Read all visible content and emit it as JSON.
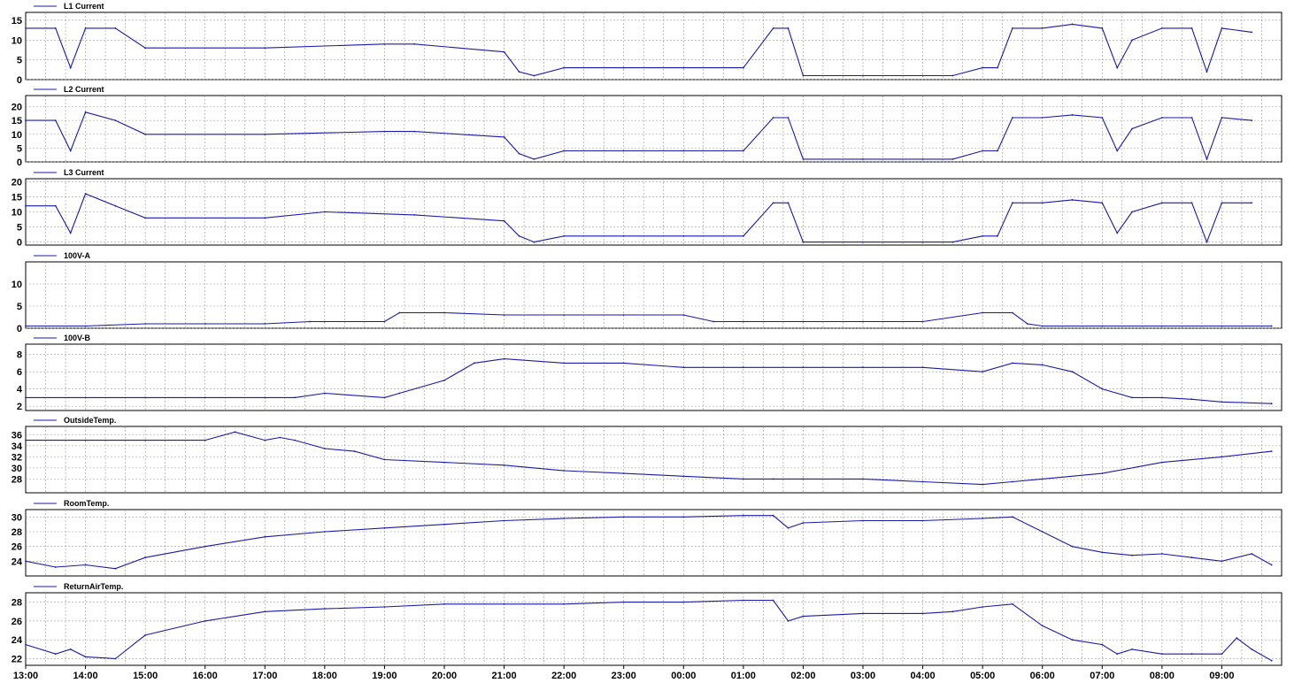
{
  "line_color": "#1a1aa8",
  "grid_color": "#999999",
  "x_tick_labels": [
    "13:00",
    "14:00",
    "15:00",
    "16:00",
    "17:00",
    "18:00",
    "19:00",
    "20:00",
    "21:00",
    "22:00",
    "23:00",
    "00:00",
    "01:00",
    "02:00",
    "03:00",
    "04:00",
    "05:00",
    "06:00",
    "07:00",
    "08:00",
    "09:00"
  ],
  "chart_data": [
    {
      "type": "line",
      "title": "L1 Current",
      "xlabel": "",
      "ylabel": "",
      "ylim": [
        0,
        17
      ],
      "yticks": [
        0,
        5,
        10,
        15
      ],
      "x": [
        "13:00",
        "13:30",
        "13:45",
        "14:00",
        "14:30",
        "15:00",
        "17:00",
        "19:00",
        "19:30",
        "21:00",
        "21:15",
        "21:30",
        "22:00",
        "23:00",
        "00:00",
        "01:00",
        "01:30",
        "01:45",
        "02:00",
        "03:00",
        "04:00",
        "04:30",
        "05:00",
        "05:15",
        "05:30",
        "06:00",
        "06:30",
        "07:00",
        "07:15",
        "07:30",
        "08:00",
        "08:30",
        "08:45",
        "09:00",
        "09:30"
      ],
      "series": [
        {
          "name": "L1 Current",
          "values": [
            13,
            13,
            3,
            13,
            13,
            8,
            8,
            9,
            9,
            7,
            2,
            1,
            3,
            3,
            3,
            3,
            13,
            13,
            1,
            1,
            1,
            1,
            3,
            3,
            13,
            13,
            14,
            13,
            3,
            10,
            13,
            13,
            2,
            13,
            12
          ]
        }
      ],
      "grid": true
    },
    {
      "type": "line",
      "title": "L2 Current",
      "xlabel": "",
      "ylabel": "",
      "ylim": [
        0,
        24
      ],
      "yticks": [
        0,
        5,
        10,
        15,
        20
      ],
      "x": [
        "13:00",
        "13:30",
        "13:45",
        "14:00",
        "14:30",
        "15:00",
        "17:00",
        "19:00",
        "19:30",
        "21:00",
        "21:15",
        "21:30",
        "22:00",
        "23:00",
        "00:00",
        "01:00",
        "01:30",
        "01:45",
        "02:00",
        "03:00",
        "04:00",
        "04:30",
        "05:00",
        "05:15",
        "05:30",
        "06:00",
        "06:30",
        "07:00",
        "07:15",
        "07:30",
        "08:00",
        "08:30",
        "08:45",
        "09:00",
        "09:30"
      ],
      "series": [
        {
          "name": "L2 Current",
          "values": [
            15,
            15,
            4,
            18,
            15,
            10,
            10,
            11,
            11,
            9,
            3,
            1,
            4,
            4,
            4,
            4,
            16,
            16,
            1,
            1,
            1,
            1,
            4,
            4,
            16,
            16,
            17,
            16,
            4,
            12,
            16,
            16,
            1,
            16,
            15
          ]
        }
      ],
      "grid": true
    },
    {
      "type": "line",
      "title": "L3 Current",
      "xlabel": "",
      "ylabel": "",
      "ylim": [
        -1,
        21
      ],
      "yticks": [
        0,
        5,
        10,
        15,
        20
      ],
      "x": [
        "13:00",
        "13:30",
        "13:45",
        "14:00",
        "14:30",
        "15:00",
        "17:00",
        "18:00",
        "19:30",
        "21:00",
        "21:15",
        "21:30",
        "22:00",
        "23:00",
        "00:00",
        "01:00",
        "01:30",
        "01:45",
        "02:00",
        "03:00",
        "04:00",
        "04:30",
        "05:00",
        "05:15",
        "05:30",
        "06:00",
        "06:30",
        "07:00",
        "07:15",
        "07:30",
        "08:00",
        "08:30",
        "08:45",
        "09:00",
        "09:30"
      ],
      "series": [
        {
          "name": "L3 Current",
          "values": [
            12,
            12,
            3,
            16,
            12,
            8,
            8,
            10,
            9,
            7,
            2,
            0,
            2,
            2,
            2,
            2,
            13,
            13,
            0,
            0,
            0,
            0,
            2,
            2,
            13,
            13,
            14,
            13,
            3,
            10,
            13,
            13,
            0,
            13,
            13
          ]
        }
      ],
      "grid": true
    },
    {
      "type": "line",
      "title": "100V-A",
      "xlabel": "",
      "ylabel": "",
      "ylim": [
        0,
        15
      ],
      "yticks": [
        0,
        5,
        10
      ],
      "x": [
        "13:00",
        "14:00",
        "15:00",
        "16:00",
        "17:00",
        "17:45",
        "18:00",
        "19:00",
        "19:15",
        "20:00",
        "21:00",
        "22:00",
        "23:00",
        "00:00",
        "00:30",
        "01:00",
        "02:00",
        "03:00",
        "04:00",
        "05:00",
        "05:30",
        "05:45",
        "06:00",
        "07:00",
        "08:00",
        "09:00",
        "09:50"
      ],
      "series": [
        {
          "name": "100V-A",
          "values": [
            0.5,
            0.5,
            1,
            1,
            1,
            1.5,
            1.5,
            1.5,
            3.5,
            3.5,
            3,
            3,
            3,
            3,
            1.5,
            1.5,
            1.5,
            1.5,
            1.5,
            3.5,
            3.5,
            1,
            0.5,
            0.5,
            0.5,
            0.5,
            0.5
          ]
        }
      ],
      "grid": true
    },
    {
      "type": "line",
      "title": "100V-B",
      "xlabel": "",
      "ylabel": "",
      "ylim": [
        1.5,
        9.2
      ],
      "yticks": [
        2,
        4,
        6,
        8
      ],
      "x": [
        "13:00",
        "14:00",
        "15:00",
        "16:00",
        "17:00",
        "17:30",
        "18:00",
        "19:00",
        "19:15",
        "20:00",
        "20:30",
        "21:00",
        "22:00",
        "23:00",
        "00:00",
        "01:00",
        "02:00",
        "03:00",
        "04:00",
        "05:00",
        "05:30",
        "06:00",
        "06:30",
        "07:00",
        "07:30",
        "08:00",
        "08:30",
        "09:00",
        "09:50"
      ],
      "series": [
        {
          "name": "100V-B",
          "values": [
            3,
            3,
            3,
            3,
            3,
            3,
            3.5,
            3,
            3.5,
            5,
            7,
            7.5,
            7,
            7,
            6.5,
            6.5,
            6.5,
            6.5,
            6.5,
            6,
            7,
            6.8,
            6,
            4,
            3,
            3,
            2.8,
            2.5,
            2.3
          ]
        }
      ],
      "grid": true
    },
    {
      "type": "line",
      "title": "OutsideTemp.",
      "xlabel": "",
      "ylabel": "",
      "ylim": [
        25.5,
        37.5
      ],
      "yticks": [
        28,
        30,
        32,
        34,
        36
      ],
      "x": [
        "13:00",
        "14:00",
        "15:00",
        "16:00",
        "16:30",
        "17:00",
        "17:15",
        "17:30",
        "18:00",
        "18:30",
        "19:00",
        "20:00",
        "21:00",
        "22:00",
        "23:00",
        "00:00",
        "01:00",
        "01:30",
        "02:00",
        "03:00",
        "04:00",
        "05:00",
        "05:30",
        "06:00",
        "07:00",
        "08:00",
        "09:00",
        "09:50"
      ],
      "series": [
        {
          "name": "OutsideTemp.",
          "values": [
            35,
            35,
            35,
            35,
            36.5,
            35,
            35.5,
            35,
            33.5,
            33,
            31.5,
            31,
            30.5,
            29.5,
            29,
            28.5,
            28,
            28,
            28,
            28,
            27.5,
            27,
            27.5,
            28,
            29,
            31,
            32,
            33
          ]
        }
      ],
      "grid": true
    },
    {
      "type": "line",
      "title": "RoomTemp.",
      "xlabel": "",
      "ylabel": "",
      "ylim": [
        22,
        31
      ],
      "yticks": [
        24,
        26,
        28,
        30
      ],
      "x": [
        "13:00",
        "13:30",
        "14:00",
        "14:30",
        "15:00",
        "16:00",
        "17:00",
        "18:00",
        "19:00",
        "20:00",
        "21:00",
        "22:00",
        "23:00",
        "00:00",
        "01:00",
        "01:30",
        "01:45",
        "02:00",
        "03:00",
        "04:00",
        "05:00",
        "05:30",
        "06:00",
        "06:30",
        "07:00",
        "07:30",
        "08:00",
        "08:30",
        "09:00",
        "09:30",
        "09:50"
      ],
      "series": [
        {
          "name": "RoomTemp.",
          "values": [
            24,
            23.2,
            23.5,
            23,
            24.5,
            26,
            27.3,
            28,
            28.5,
            29,
            29.5,
            29.8,
            30,
            30,
            30.2,
            30.2,
            28.5,
            29.2,
            29.5,
            29.5,
            29.8,
            30,
            28,
            26,
            25.2,
            24.8,
            25,
            24.5,
            24,
            25,
            23.5
          ]
        }
      ],
      "grid": true
    },
    {
      "type": "line",
      "title": "ReturnAirTemp.",
      "xlabel": "",
      "ylabel": "",
      "ylim": [
        21.3,
        29
      ],
      "yticks": [
        22,
        24,
        26,
        28
      ],
      "x": [
        "13:00",
        "13:30",
        "13:45",
        "14:00",
        "14:30",
        "15:00",
        "16:00",
        "17:00",
        "18:00",
        "19:00",
        "20:00",
        "21:00",
        "22:00",
        "23:00",
        "00:00",
        "01:00",
        "01:30",
        "01:45",
        "02:00",
        "03:00",
        "04:00",
        "04:30",
        "05:00",
        "05:30",
        "06:00",
        "06:30",
        "07:00",
        "07:15",
        "07:30",
        "08:00",
        "08:30",
        "09:00",
        "09:15",
        "09:30",
        "09:50"
      ],
      "series": [
        {
          "name": "ReturnAirTemp.",
          "values": [
            23.5,
            22.5,
            23,
            22.2,
            22,
            24.5,
            26,
            27,
            27.3,
            27.5,
            27.8,
            27.8,
            27.8,
            28,
            28,
            28.2,
            28.2,
            26,
            26.5,
            26.8,
            26.8,
            27,
            27.5,
            27.8,
            25.5,
            24,
            23.5,
            22.5,
            23,
            22.5,
            22.5,
            22.5,
            24.2,
            23,
            21.8
          ]
        }
      ],
      "grid": true
    }
  ]
}
